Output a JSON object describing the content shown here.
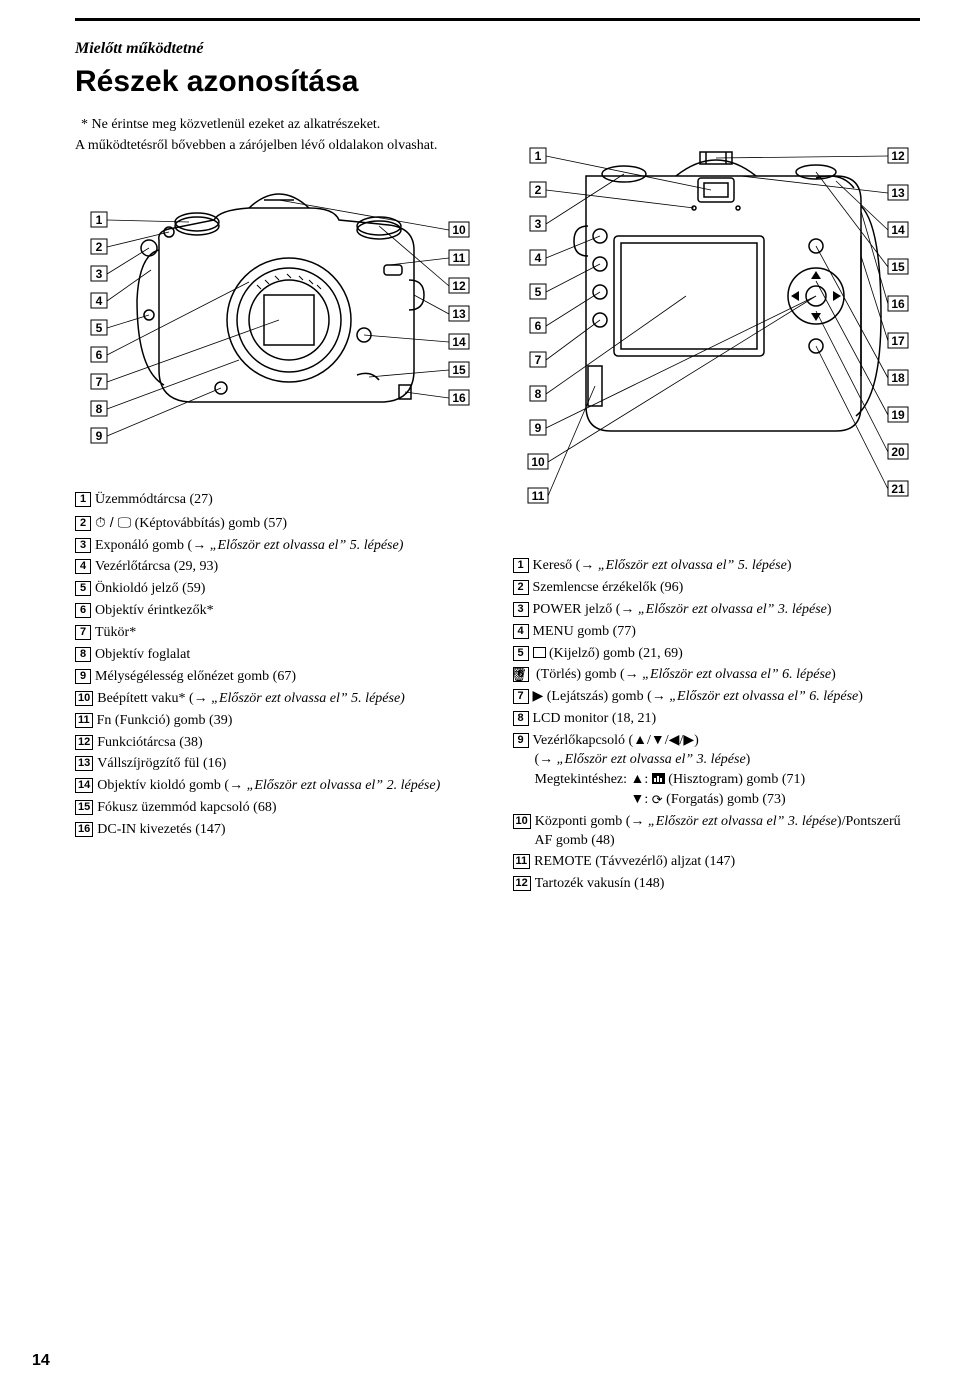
{
  "section_label": "Mielőtt működtetné",
  "page_title": "Részek azonosítása",
  "intro": {
    "line1_prefix": "* ",
    "line1": "Ne érintse meg közvetlenül ezeket az alkatrészeket.",
    "line2": "A működtetésről bővebben a zárójelben lévő oldalakon olvashat."
  },
  "left_list": [
    {
      "n": "1",
      "text": "Üzemmódtárcsa (27)"
    },
    {
      "n": "2",
      "pre": "⏱ / 🖵",
      "text": " (Képtovábbítás) gomb (57)"
    },
    {
      "n": "3",
      "text": "Exponáló gomb (→ „Először ezt olvassa el” 5. lépése)",
      "italic_ranges": [
        [
          17,
          52
        ]
      ]
    },
    {
      "n": "4",
      "text": "Vezérlőtárcsa (29, 93)"
    },
    {
      "n": "5",
      "text": "Önkioldó jelző (59)"
    },
    {
      "n": "6",
      "text": "Objektív érintkezők*"
    },
    {
      "n": "7",
      "text": "Tükör*"
    },
    {
      "n": "8",
      "text": "Objektív foglalat"
    },
    {
      "n": "9",
      "text": "Mélységélesség előnézet gomb (67)"
    },
    {
      "n": "10",
      "text": "Beépített vaku* (→ „Először ezt olvassa el” 5. lépése)",
      "italic_ranges": [
        [
          19,
          54
        ]
      ]
    },
    {
      "n": "11",
      "text": "Fn (Funkció) gomb (39)"
    },
    {
      "n": "12",
      "text": "Funkciótárcsa (38)"
    },
    {
      "n": "13",
      "text": "Vállszíjrögzítő fül (16)"
    },
    {
      "n": "14",
      "text": "Objektív kioldó gomb (→ „Először ezt olvassa el” 2. lépése)",
      "italic_ranges": [
        [
          24,
          59
        ]
      ]
    },
    {
      "n": "15",
      "text": "Fókusz üzemmód kapcsoló (68)"
    },
    {
      "n": "16",
      "text": "DC-IN kivezetés (147)"
    }
  ],
  "right_list": [
    {
      "n": "1",
      "html": "Kereső (→ <span class=\"italic\">„Először ezt olvassa el” 5. lépése</span>)"
    },
    {
      "n": "2",
      "html": "Szemlencse érzékelők (96)"
    },
    {
      "n": "3",
      "html": "POWER jelző (→ <span class=\"italic\">„Először ezt olvassa el” 3. lépése</span>)"
    },
    {
      "n": "4",
      "html": "MENU gomb (77)"
    },
    {
      "n": "5",
      "html": "<span class=\"icon-box\"></span> (Kijelző) gomb (21, 69)"
    },
    {
      "n": "6",
      "html": "<span class=\"icon-trash\">🗑</span> (Törlés) gomb (→ <span class=\"italic\">„Először ezt olvassa el” 6. lépése</span>)"
    },
    {
      "n": "7",
      "html": "▶ (Lejátszás) gomb (→ <span class=\"italic\">„Először ezt olvassa el” 6. lépése</span>)"
    },
    {
      "n": "8",
      "html": "LCD monitor (18, 21)"
    },
    {
      "n": "9",
      "html": "Vezérlőkapcsoló (▲/▼/◀/▶)<br>(→ <span class=\"italic\">„Először ezt olvassa el” 3. lépése</span>)",
      "extra": [
        "Megtekintéshez: ▲: <span class=\"icon-histo\"></span> (Hisztogram) gomb (71)",
        "▼: <span class=\"icon-rotate\">⟳</span> (Forgatás) gomb (73)"
      ]
    },
    {
      "n": "10",
      "html": "Központi gomb (→ <span class=\"italic\">„Először ezt olvassa el” 3. lépése</span>)/Pontszerű AF gomb (48)"
    },
    {
      "n": "11",
      "html": "REMOTE (Távvezérlő) aljzat (147)"
    },
    {
      "n": "12",
      "html": "Tartozék vakusín (148)"
    }
  ],
  "page_number": "14",
  "fig": {
    "left_callouts_l": [
      "1",
      "2",
      "3",
      "4",
      "5",
      "6",
      "7",
      "8",
      "9"
    ],
    "left_callouts_r": [
      "10",
      "11",
      "12",
      "13",
      "14",
      "15",
      "16"
    ],
    "right_callouts_l": [
      "1",
      "2",
      "3",
      "4",
      "5",
      "6",
      "7",
      "8",
      "9",
      "10",
      "11"
    ],
    "right_callouts_r": [
      "12",
      "13",
      "14",
      "15",
      "16",
      "17",
      "18",
      "19",
      "20",
      "21"
    ]
  }
}
